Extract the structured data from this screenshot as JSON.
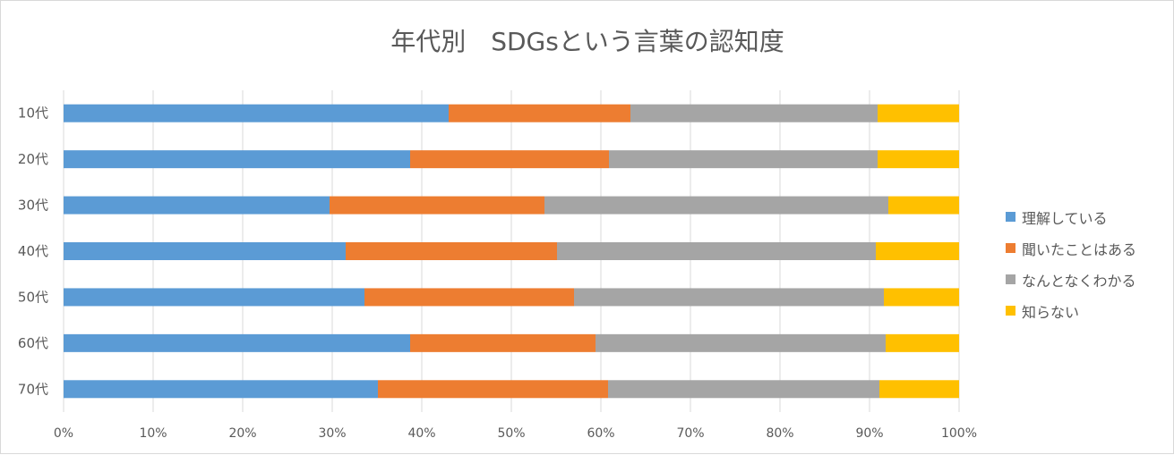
{
  "chart_data": {
    "type": "bar",
    "orientation": "horizontal",
    "stacked": "percent",
    "title": "年代別　SDGsという言葉の認知度",
    "categories": [
      "10代",
      "20代",
      "30代",
      "40代",
      "50代",
      "60代",
      "70代"
    ],
    "series": [
      {
        "name": "理解している",
        "color": "#5B9BD5",
        "values": [
          43.0,
          38.7,
          29.7,
          31.5,
          33.6,
          38.7,
          35.1
        ]
      },
      {
        "name": "聞いたことはある",
        "color": "#ED7D31",
        "values": [
          20.3,
          22.2,
          24.0,
          23.6,
          23.4,
          20.7,
          25.7
        ]
      },
      {
        "name": "なんとなくわかる",
        "color": "#A5A5A5",
        "values": [
          27.6,
          30.0,
          38.4,
          35.6,
          34.6,
          32.4,
          30.3
        ]
      },
      {
        "name": "知らない",
        "color": "#FFC000",
        "values": [
          9.1,
          9.1,
          7.9,
          9.3,
          8.4,
          8.2,
          8.9
        ]
      }
    ],
    "x_ticks": [
      "0%",
      "10%",
      "20%",
      "30%",
      "40%",
      "50%",
      "60%",
      "70%",
      "80%",
      "90%",
      "100%"
    ],
    "xlim": [
      0,
      100
    ],
    "grid": true,
    "legend_position": "right",
    "xlabel": "",
    "ylabel": ""
  }
}
